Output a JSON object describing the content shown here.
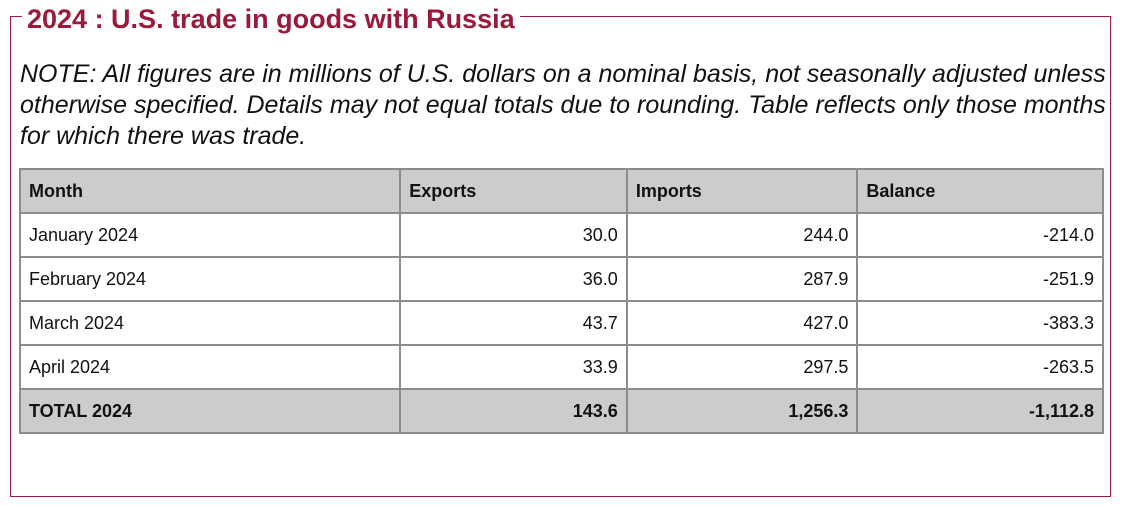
{
  "title": "2024 : U.S. trade in goods with Russia",
  "note": "NOTE: All figures are in millions of U.S. dollars on a nominal basis, not seasonally adjusted unless otherwise specified. Details may not equal totals due to rounding. Table reflects only those months for which there was trade.",
  "table": {
    "headers": [
      "Month",
      "Exports",
      "Imports",
      "Balance"
    ],
    "rows": [
      {
        "month": "January 2024",
        "exports": "30.0",
        "imports": "244.0",
        "balance": "-214.0"
      },
      {
        "month": "February 2024",
        "exports": "36.0",
        "imports": "287.9",
        "balance": "-251.9"
      },
      {
        "month": "March 2024",
        "exports": "43.7",
        "imports": "427.0",
        "balance": "-383.3"
      },
      {
        "month": "April 2024",
        "exports": "33.9",
        "imports": "297.5",
        "balance": "-263.5"
      }
    ],
    "total": {
      "month": "TOTAL 2024",
      "exports": "143.6",
      "imports": "1,256.3",
      "balance": "-1,112.8"
    }
  },
  "colors": {
    "accent": "#9a1a3c",
    "header_bg": "#cccccc",
    "grid": "#8c8c8c"
  }
}
